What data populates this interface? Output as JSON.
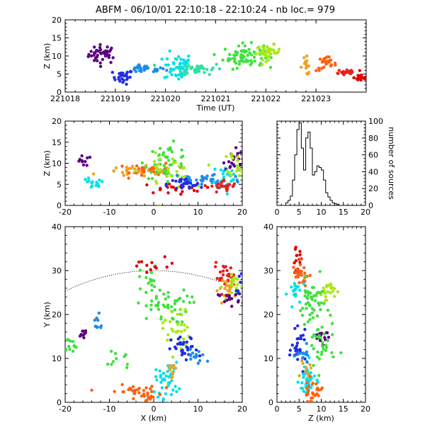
{
  "title": "ABFM - 06/10/01 22:10:18 - 22:10:24 - nb loc.=    979",
  "chart_data": [
    {
      "id": "time-height",
      "type": "scatter",
      "xlabel": "Time (UT)",
      "ylabel": "Z (km)",
      "xlim": [
        221018,
        221024
      ],
      "ylim": [
        0,
        20
      ],
      "xticks": [
        "221018",
        "221019",
        "221020",
        "221021",
        "221022",
        "221023"
      ],
      "yticks": [
        "0",
        "5",
        "10",
        "15",
        "20"
      ],
      "clusters": [
        {
          "color": "#5a0080",
          "cx": 221018.75,
          "cy": 10.5,
          "sx": 0.14,
          "sy": 1.3,
          "n": 40
        },
        {
          "color": "#1e2de0",
          "cx": 221019.15,
          "cy": 4.2,
          "sx": 0.1,
          "sy": 1.0,
          "n": 25
        },
        {
          "color": "#1e8ce8",
          "cx": 221019.6,
          "cy": 6.3,
          "sx": 0.2,
          "sy": 0.5,
          "n": 30
        },
        {
          "color": "#00e0e8",
          "cx": 221020.25,
          "cy": 7.0,
          "sx": 0.14,
          "sy": 2.0,
          "n": 50
        },
        {
          "color": "#30e0a0",
          "cx": 221020.65,
          "cy": 6.5,
          "sx": 0.25,
          "sy": 0.8,
          "n": 40
        },
        {
          "color": "#40e040",
          "cx": 221021.55,
          "cy": 10.0,
          "sx": 0.2,
          "sy": 1.6,
          "n": 70
        },
        {
          "color": "#a8e818",
          "cx": 221022.05,
          "cy": 11.0,
          "sx": 0.12,
          "sy": 1.0,
          "n": 40
        },
        {
          "color": "#f0a020",
          "cx": 221022.8,
          "cy": 7.2,
          "sx": 0.06,
          "sy": 1.2,
          "n": 15
        },
        {
          "color": "#ff6010",
          "cx": 221023.2,
          "cy": 7.8,
          "sx": 0.1,
          "sy": 1.0,
          "n": 25
        },
        {
          "color": "#e82020",
          "cx": 221023.6,
          "cy": 5.5,
          "sx": 0.1,
          "sy": 0.6,
          "n": 20
        },
        {
          "color": "#e00000",
          "cx": 221023.9,
          "cy": 4.0,
          "sx": 0.07,
          "sy": 0.6,
          "n": 20
        }
      ]
    },
    {
      "id": "x-z",
      "type": "scatter",
      "xlabel": "",
      "ylabel": "Z (km)",
      "xlim": [
        -20,
        20
      ],
      "ylim": [
        0,
        20
      ],
      "xticks": [
        "-20",
        "-10",
        "0",
        "10",
        "20"
      ],
      "yticks": [
        "0",
        "5",
        "10",
        "15",
        "20"
      ],
      "clusters": [
        {
          "color": "#5a0080",
          "cx": -16,
          "cy": 10.5,
          "sx": 1.0,
          "sy": 0.6,
          "n": 10
        },
        {
          "color": "#00e0e8",
          "cx": -14,
          "cy": 5.0,
          "sx": 1.5,
          "sy": 0.8,
          "n": 15
        },
        {
          "color": "#f0a020",
          "cx": -3,
          "cy": 8.0,
          "sx": 4.0,
          "sy": 0.6,
          "n": 40
        },
        {
          "color": "#ff6010",
          "cx": 0,
          "cy": 8.5,
          "sx": 2.5,
          "sy": 0.8,
          "n": 30
        },
        {
          "color": "#40e040",
          "cx": 3,
          "cy": 10.5,
          "sx": 2.5,
          "sy": 2.0,
          "n": 50
        },
        {
          "color": "#a8e818",
          "cx": 3,
          "cy": 8.0,
          "sx": 3.0,
          "sy": 2.0,
          "n": 30
        },
        {
          "color": "#e00000",
          "cx": 4,
          "cy": 4.0,
          "sx": 3.5,
          "sy": 0.6,
          "n": 20
        },
        {
          "color": "#1e2de0",
          "cx": 7,
          "cy": 5.0,
          "sx": 2.0,
          "sy": 0.8,
          "n": 30
        },
        {
          "color": "#1e8ce8",
          "cx": 12,
          "cy": 6.0,
          "sx": 4.0,
          "sy": 1.0,
          "n": 30
        },
        {
          "color": "#00e0e8",
          "cx": 17,
          "cy": 7.0,
          "sx": 2.0,
          "sy": 1.5,
          "n": 30
        },
        {
          "color": "#e82020",
          "cx": 16,
          "cy": 4.5,
          "sx": 1.5,
          "sy": 0.8,
          "n": 25
        },
        {
          "color": "#5a0080",
          "cx": 18,
          "cy": 11.0,
          "sx": 1.0,
          "sy": 1.5,
          "n": 20
        },
        {
          "color": "#a8e818",
          "cx": 19,
          "cy": 10.0,
          "sx": 1.0,
          "sy": 1.5,
          "n": 20
        }
      ]
    },
    {
      "id": "height-histogram",
      "type": "bar",
      "xlabel": "",
      "ylabel": "number of sources",
      "xlim": [
        0,
        20
      ],
      "ylim": [
        0,
        100
      ],
      "xticks": [
        "0",
        "5",
        "10",
        "15",
        "20"
      ],
      "yticks": [
        "0",
        "20",
        "40",
        "60",
        "80",
        "100"
      ],
      "bin_edges": [
        2,
        2.5,
        3,
        3.5,
        4,
        4.5,
        5,
        5.5,
        6,
        6.5,
        7,
        7.5,
        8,
        8.5,
        9,
        9.5,
        10,
        10.5,
        11,
        11.5,
        12,
        12.5,
        13,
        13.5,
        14
      ],
      "counts": [
        3,
        6,
        11,
        30,
        60,
        90,
        98,
        68,
        42,
        80,
        87,
        68,
        36,
        40,
        47,
        45,
        42,
        30,
        15,
        10,
        6,
        3,
        2,
        1
      ]
    },
    {
      "id": "x-y",
      "type": "scatter",
      "xlabel": "X (km)",
      "ylabel": "Y (km)",
      "xlim": [
        -20,
        20
      ],
      "ylim": [
        0,
        40
      ],
      "xticks": [
        "-20",
        "-10",
        "0",
        "10",
        "20"
      ],
      "yticks": [
        "0",
        "10",
        "20",
        "30",
        "40"
      ],
      "range_circle": {
        "center": [
          0,
          -15
        ],
        "radius": 45,
        "x_from": -20,
        "x_to": 15
      },
      "clusters": [
        {
          "color": "#40e040",
          "cx": -19,
          "cy": 13.0,
          "sx": 0.8,
          "sy": 1.0,
          "n": 12
        },
        {
          "color": "#5a0080",
          "cx": -16,
          "cy": 15.5,
          "sx": 0.6,
          "sy": 0.7,
          "n": 10
        },
        {
          "color": "#1e8ce8",
          "cx": -13,
          "cy": 18.0,
          "sx": 1.0,
          "sy": 1.0,
          "n": 10
        },
        {
          "color": "#40e040",
          "cx": 2,
          "cy": 22.0,
          "sx": 3.0,
          "sy": 2.0,
          "n": 50
        },
        {
          "color": "#a8e818",
          "cx": 5,
          "cy": 17.0,
          "sx": 1.5,
          "sy": 3.0,
          "n": 30
        },
        {
          "color": "#40e040",
          "cx": -1,
          "cy": 28.0,
          "sx": 1.0,
          "sy": 1.5,
          "n": 15
        },
        {
          "color": "#e00000",
          "cx": 0,
          "cy": 31.0,
          "sx": 3.0,
          "sy": 1.0,
          "n": 12
        },
        {
          "color": "#1e2de0",
          "cx": 7,
          "cy": 12.0,
          "sx": 1.5,
          "sy": 1.5,
          "n": 30
        },
        {
          "color": "#1e8ce8",
          "cx": 10,
          "cy": 10.5,
          "sx": 2.0,
          "sy": 1.0,
          "n": 15
        },
        {
          "color": "#40e040",
          "cx": -8,
          "cy": 10.0,
          "sx": 1.5,
          "sy": 1.5,
          "n": 10
        },
        {
          "color": "#00e0e8",
          "cx": 3,
          "cy": 5.0,
          "sx": 1.3,
          "sy": 2.0,
          "n": 40
        },
        {
          "color": "#f0a020",
          "cx": 4,
          "cy": 7.5,
          "sx": 0.6,
          "sy": 1.0,
          "n": 10
        },
        {
          "color": "#ff6010",
          "cx": -5,
          "cy": 2.5,
          "sx": 3.0,
          "sy": 0.7,
          "n": 25
        },
        {
          "color": "#ff6010",
          "cx": -1,
          "cy": 1.5,
          "sx": 1.0,
          "sy": 1.0,
          "n": 15
        },
        {
          "color": "#e82020",
          "cx": 16,
          "cy": 28.5,
          "sx": 1.2,
          "sy": 1.5,
          "n": 30
        },
        {
          "color": "#f0a020",
          "cx": 17,
          "cy": 26.0,
          "sx": 1.2,
          "sy": 1.2,
          "n": 20
        },
        {
          "color": "#a8e818",
          "cx": 19,
          "cy": 26.0,
          "sx": 1.0,
          "sy": 1.5,
          "n": 20
        },
        {
          "color": "#5a0080",
          "cx": 17,
          "cy": 23.5,
          "sx": 1.2,
          "sy": 0.8,
          "n": 15
        },
        {
          "color": "#1e2de0",
          "cx": 19.5,
          "cy": 28.0,
          "sx": 0.4,
          "sy": 1.5,
          "n": 8
        }
      ]
    },
    {
      "id": "z-y",
      "type": "scatter",
      "xlabel": "Z (km)",
      "ylabel": "",
      "xlim": [
        0,
        20
      ],
      "ylim": [
        0,
        40
      ],
      "xticks": [
        "0",
        "5",
        "10",
        "15",
        "20"
      ],
      "yticks": [
        "0",
        "10",
        "20",
        "30",
        "40"
      ],
      "clusters": [
        {
          "color": "#e00000",
          "cx": 4.5,
          "cy": 32.0,
          "sx": 0.6,
          "sy": 1.5,
          "n": 15
        },
        {
          "color": "#ff6010",
          "cx": 5.5,
          "cy": 29.0,
          "sx": 1.0,
          "sy": 1.5,
          "n": 25
        },
        {
          "color": "#00e0e8",
          "cx": 4.5,
          "cy": 25.0,
          "sx": 1.0,
          "sy": 1.5,
          "n": 20
        },
        {
          "color": "#a8e818",
          "cx": 11.0,
          "cy": 25.5,
          "sx": 1.0,
          "sy": 1.0,
          "n": 25
        },
        {
          "color": "#40e040",
          "cx": 8.0,
          "cy": 22.0,
          "sx": 1.5,
          "sy": 3.0,
          "n": 50
        },
        {
          "color": "#5a0080",
          "cx": 10.0,
          "cy": 15.5,
          "sx": 1.0,
          "sy": 1.0,
          "n": 15
        },
        {
          "color": "#1e2de0",
          "cx": 5.0,
          "cy": 12.0,
          "sx": 0.8,
          "sy": 2.0,
          "n": 30
        },
        {
          "color": "#1e8ce8",
          "cx": 6.0,
          "cy": 10.5,
          "sx": 0.8,
          "sy": 1.0,
          "n": 15
        },
        {
          "color": "#40e040",
          "cx": 10.0,
          "cy": 12.5,
          "sx": 1.5,
          "sy": 3.0,
          "n": 30
        },
        {
          "color": "#00e0e8",
          "cx": 7.0,
          "cy": 5.0,
          "sx": 1.0,
          "sy": 2.0,
          "n": 40
        },
        {
          "color": "#f0a020",
          "cx": 6.5,
          "cy": 7.0,
          "sx": 0.6,
          "sy": 1.0,
          "n": 10
        },
        {
          "color": "#ff6010",
          "cx": 8.0,
          "cy": 2.0,
          "sx": 1.0,
          "sy": 1.5,
          "n": 30
        }
      ]
    }
  ]
}
